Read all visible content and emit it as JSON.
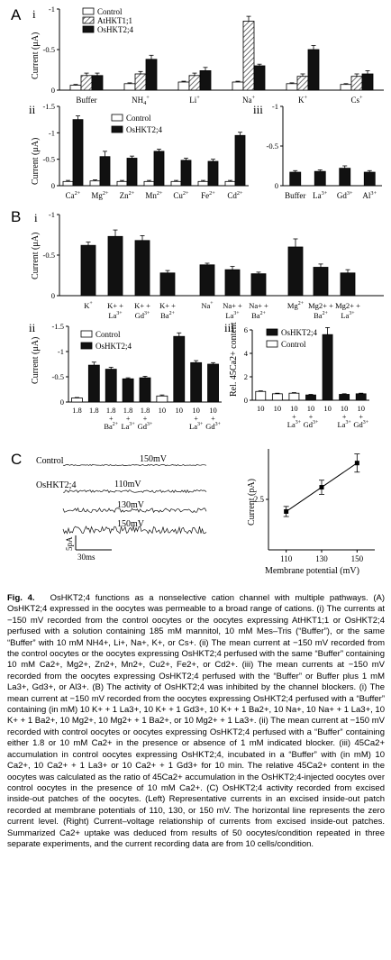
{
  "panel_A": {
    "letter": "A",
    "sub_i": "i",
    "sub_ii": "ii",
    "sub_iii": "iii",
    "ylabel": "Current (μA)",
    "i": {
      "legend": [
        "Control",
        "AtHKT1;1",
        "OsHKT2;4"
      ],
      "yticks": [
        "-1",
        "-0.5",
        "0"
      ],
      "categories": [
        "Buffer",
        "NH4+",
        "Li+",
        "Na+",
        "K+",
        "Cs+"
      ],
      "series": [
        {
          "name": "Control",
          "values": [
            0.06,
            0.08,
            0.1,
            0.1,
            0.08,
            0.07
          ],
          "err": [
            0.01,
            0.01,
            0.01,
            0.01,
            0.01,
            0.01
          ],
          "color": "#ffffff"
        },
        {
          "name": "AtHKT1;1",
          "values": [
            0.18,
            0.2,
            0.18,
            0.85,
            0.17,
            0.17
          ],
          "err": [
            0.03,
            0.03,
            0.03,
            0.06,
            0.03,
            0.03
          ],
          "color": "hatch"
        },
        {
          "name": "OsHKT2;4",
          "values": [
            0.18,
            0.38,
            0.24,
            0.3,
            0.5,
            0.2
          ],
          "err": [
            0.03,
            0.05,
            0.04,
            0.02,
            0.05,
            0.04
          ],
          "color": "#111111"
        }
      ]
    },
    "ii": {
      "legend": [
        "Control",
        "OsHKT2;4"
      ],
      "yticks": [
        "-1.5",
        "-1",
        "-0.5",
        "0"
      ],
      "categories": [
        "Ca2+",
        "Mg2+",
        "Zn2+",
        "Mn2+",
        "Cu2+",
        "Fe2+",
        "Cd2+"
      ],
      "series": [
        {
          "name": "Control",
          "values": [
            0.08,
            0.09,
            0.08,
            0.08,
            0.08,
            0.08,
            0.08
          ],
          "err": [
            0.02,
            0.02,
            0.02,
            0.02,
            0.02,
            0.02,
            0.02
          ],
          "color": "#ffffff"
        },
        {
          "name": "OsHKT2;4",
          "values": [
            1.25,
            0.55,
            0.52,
            0.65,
            0.48,
            0.46,
            0.95
          ],
          "err": [
            0.07,
            0.1,
            0.04,
            0.04,
            0.04,
            0.04,
            0.06
          ],
          "color": "#111111"
        }
      ]
    },
    "iii": {
      "yticks": [
        "-1",
        "-0.5",
        "0"
      ],
      "categories": [
        "Buffer",
        "La3+",
        "Gd3+",
        "Al3+"
      ],
      "series": [
        {
          "name": "",
          "values": [
            0.17,
            0.18,
            0.22,
            0.17
          ],
          "err": [
            0.02,
            0.02,
            0.03,
            0.02
          ],
          "color": "#111111"
        }
      ]
    }
  },
  "panel_B": {
    "letter": "B",
    "sub_i": "i",
    "sub_ii": "ii",
    "sub_iii": "iii",
    "ylabel": "Current (μA)",
    "i": {
      "yticks": [
        "-1",
        "-0.5",
        "0"
      ],
      "groups": [
        {
          "labels": [
            [
              "K+"
            ],
            [
              "K+ +",
              "La3+"
            ],
            [
              "K+ +",
              "Gd3+"
            ],
            [
              "K+ +",
              "Ba2+"
            ]
          ],
          "values": [
            0.62,
            0.73,
            0.68,
            0.28
          ],
          "err": [
            0.04,
            0.08,
            0.06,
            0.03
          ]
        },
        {
          "labels": [
            [
              "Na+"
            ],
            [
              "Na+ +",
              "La3+"
            ],
            [
              "Na+ +",
              "Ba2+"
            ]
          ],
          "values": [
            0.38,
            0.32,
            0.27
          ],
          "err": [
            0.02,
            0.04,
            0.02
          ]
        },
        {
          "labels": [
            [
              "Mg2+"
            ],
            [
              "Mg2+ +",
              "Ba2+"
            ],
            [
              "Mg2+ +",
              "La3+"
            ]
          ],
          "values": [
            0.6,
            0.35,
            0.28
          ],
          "err": [
            0.1,
            0.04,
            0.04
          ]
        }
      ]
    },
    "ii": {
      "legend": [
        "Control",
        "OsHKT2;4"
      ],
      "yticks": [
        "-1.5",
        "-1",
        "-0.5",
        "0"
      ],
      "bars": [
        {
          "label": "1.8",
          "extra": "",
          "control": true,
          "value": 0.08,
          "err": 0.01
        },
        {
          "label": "1.8",
          "extra": "",
          "control": false,
          "value": 0.73,
          "err": 0.06
        },
        {
          "label": "1.8",
          "extra": "Ba2+",
          "control": false,
          "value": 0.65,
          "err": 0.04
        },
        {
          "label": "1.8",
          "extra": "La3+",
          "control": false,
          "value": 0.46,
          "err": 0.02
        },
        {
          "label": "1.8",
          "extra": "Gd3+",
          "control": false,
          "value": 0.48,
          "err": 0.03
        },
        {
          "label": "10",
          "extra": "",
          "control": true,
          "value": 0.12,
          "err": 0.02
        },
        {
          "label": "10",
          "extra": "",
          "control": false,
          "value": 1.3,
          "err": 0.07
        },
        {
          "label": "10",
          "extra": "La3+",
          "control": false,
          "value": 0.78,
          "err": 0.04
        },
        {
          "label": "10",
          "extra": "Gd3+",
          "control": false,
          "value": 0.75,
          "err": 0.03
        }
      ]
    },
    "iii": {
      "ylabel": "Rel. 45Ca2+ content",
      "yticks": [
        "0",
        "2",
        "4",
        "6"
      ],
      "legend": [
        "OsHKT2;4",
        "Control"
      ],
      "bars": [
        {
          "label": "10",
          "extra": "",
          "control": true,
          "value": 0.75,
          "err": 0.05
        },
        {
          "label": "10",
          "extra": "",
          "control": true,
          "value": 0.55,
          "err": 0.05
        },
        {
          "label": "10",
          "extra": "La3+",
          "control": true,
          "value": 0.6,
          "err": 0.05
        },
        {
          "label": "10",
          "extra": "Gd3+",
          "control": false,
          "value": 0.45,
          "err": 0.05
        },
        {
          "label": "10",
          "extra": "",
          "control": false,
          "value": 5.6,
          "err": 0.6
        },
        {
          "label": "10",
          "extra": "La3+",
          "control": false,
          "value": 0.5,
          "err": 0.05
        },
        {
          "label": "10",
          "extra": "Gd3+",
          "control": false,
          "value": 0.55,
          "err": 0.05
        }
      ]
    }
  },
  "panel_C": {
    "letter": "C",
    "control_label": "Control",
    "oshkt_label": "OsHKT2;4",
    "trace_labels": [
      "150mV",
      "110mV",
      "130mV",
      "150mV"
    ],
    "scalebar_y": "5pA",
    "scalebar_x": "30ms",
    "ylabel": "Current (pA)",
    "xlabel": "Membrane potential (mV)",
    "xticks": [
      "110",
      "130",
      "150"
    ],
    "yticks": [
      "2.5"
    ]
  },
  "chart_data": [
    {
      "type": "bar",
      "panel": "A i",
      "categories": [
        "Buffer",
        "NH4+",
        "Li+",
        "Na+",
        "K+",
        "Cs+"
      ],
      "series": [
        {
          "name": "Control",
          "values": [
            -0.06,
            -0.08,
            -0.1,
            -0.1,
            -0.08,
            -0.07
          ]
        },
        {
          "name": "AtHKT1;1",
          "values": [
            -0.18,
            -0.2,
            -0.18,
            -0.85,
            -0.17,
            -0.17
          ]
        },
        {
          "name": "OsHKT2;4",
          "values": [
            -0.18,
            -0.38,
            -0.24,
            -0.3,
            -0.5,
            -0.2
          ]
        }
      ],
      "ylabel": "Current (μA)",
      "ylim": [
        0,
        -1
      ]
    },
    {
      "type": "bar",
      "panel": "A ii",
      "categories": [
        "Ca2+",
        "Mg2+",
        "Zn2+",
        "Mn2+",
        "Cu2+",
        "Fe2+",
        "Cd2+"
      ],
      "series": [
        {
          "name": "Control",
          "values": [
            -0.08,
            -0.09,
            -0.08,
            -0.08,
            -0.08,
            -0.08,
            -0.08
          ]
        },
        {
          "name": "OsHKT2;4",
          "values": [
            -1.25,
            -0.55,
            -0.52,
            -0.65,
            -0.48,
            -0.46,
            -0.95
          ]
        }
      ],
      "ylabel": "Current (μA)",
      "ylim": [
        0,
        -1.5
      ]
    },
    {
      "type": "bar",
      "panel": "A iii",
      "categories": [
        "Buffer",
        "La3+",
        "Gd3+",
        "Al3+"
      ],
      "values": [
        -0.17,
        -0.18,
        -0.22,
        -0.17
      ],
      "ylim": [
        0,
        -1
      ]
    },
    {
      "type": "bar",
      "panel": "B i",
      "categories": [
        "K+",
        "K+ + La3+",
        "K+ + Gd3+",
        "K+ + Ba2+",
        "Na+",
        "Na+ + La3+",
        "Na+ + Ba2+",
        "Mg2+",
        "Mg2+ + Ba2+",
        "Mg2+ + La3+"
      ],
      "values": [
        -0.62,
        -0.73,
        -0.68,
        -0.28,
        -0.38,
        -0.32,
        -0.27,
        -0.6,
        -0.35,
        -0.28
      ],
      "ylabel": "Current (μA)",
      "ylim": [
        0,
        -1
      ]
    },
    {
      "type": "bar",
      "panel": "B ii",
      "categories": [
        "1.8",
        "1.8",
        "1.8 + Ba2+",
        "1.8 + La3+",
        "1.8 + Gd3+",
        "10",
        "10",
        "10 + La3+",
        "10 + Gd3+"
      ],
      "values": [
        -0.08,
        -0.73,
        -0.65,
        -0.46,
        -0.48,
        -0.12,
        -1.3,
        -0.78,
        -0.75
      ],
      "ylabel": "Current (μA)",
      "ylim": [
        0,
        -1.5
      ]
    },
    {
      "type": "bar",
      "panel": "B iii",
      "categories": [
        "10",
        "10",
        "10 + La3+",
        "10 + Gd3+",
        "10",
        "10 + La3+",
        "10 + Gd3+"
      ],
      "values": [
        0.75,
        0.55,
        0.6,
        0.45,
        5.6,
        0.5,
        0.55
      ],
      "ylabel": "Rel. 45Ca2+ content",
      "ylim": [
        0,
        6
      ]
    },
    {
      "type": "line",
      "panel": "C right",
      "x": [
        110,
        130,
        150
      ],
      "y": [
        1.9,
        3.1,
        4.3
      ],
      "err": [
        0.25,
        0.35,
        0.45
      ],
      "xlabel": "Membrane potential (mV)",
      "ylabel": "Current (pA)"
    }
  ],
  "caption": {
    "title": "Fig. 4.",
    "title_text": "OsHKT2;4 functions as a nonselective cation channel with multiple pathways.",
    "paragraphs": [
      "(A) OsHKT2;4 expressed in the oocytes was permeable to a broad range of cations. (i) The currents at −150 mV recorded from the control oocytes or the oocytes expressing AtHKT1;1 or OsHKT2;4 perfused with a solution containing 185 mM mannitol, 10 mM Mes–Tris (“Buffer”), or the same “Buffer” with 10 mM NH4+, Li+, Na+, K+, or Cs+. (ii) The mean current at −150 mV recorded from the control oocytes or the oocytes expressing OsHKT2;4 perfused with the same “Buffer” containing 10 mM Ca2+, Mg2+, Zn2+, Mn2+, Cu2+, Fe2+, or Cd2+. (iii) The mean currents at −150 mV recorded from the oocytes expressing OsHKT2;4 perfused with the “Buffer” or Buffer plus 1 mM La3+, Gd3+, or Al3+. (B) The activity of OsHKT2;4 was inhibited by the channel blockers. (i) The mean current at −150 mV recorded from the oocytes expressing OsHKT2;4 perfused with a “Buffer” containing (in mM) 10 K+ + 1 La3+, 10 K+ + 1 Gd3+, 10 K+ + 1 Ba2+, 10 Na+, 10 Na+ + 1 La3+, 10 K+ + 1 Ba2+, 10 Mg2+, 10 Mg2+ + 1 Ba2+, or 10 Mg2+ + 1 La3+. (ii) The mean current at −150 mV recorded with control oocytes or oocytes expressing OsHKT2;4 perfused with a “Buffer” containing either 1.8 or 10 mM Ca2+ in the presence or absence of 1 mM indicated blocker. (iii) 45Ca2+ accumulation in control oocytes expressing OsHKT2;4, incubated in a “Buffer” with (in mM) 10 Ca2+, 10 Ca2+ + 1 La3+ or 10 Ca2+ + 1 Gd3+ for 10 min. The relative 45Ca2+ content in the oocytes was calculated as the ratio of 45Ca2+ accumulation in the OsHKT2;4-injected oocytes over control oocytes in the presence of 10 mM Ca2+. (C) OsHKT2;4 activity recorded from excised inside-out patches of the oocytes. (Left) Representative currents in an excised inside-out patch recorded at membrane potentials of 110, 130, or 150 mV. The horizontal line represents the zero current level. (Right) Current–voltage relationship of currents from excised inside-out patches. Summarized Ca2+ uptake was deduced from results of 50 oocytes/condition repeated in three separate experiments, and the current recording data are from 10 cells/condition."
    ]
  }
}
